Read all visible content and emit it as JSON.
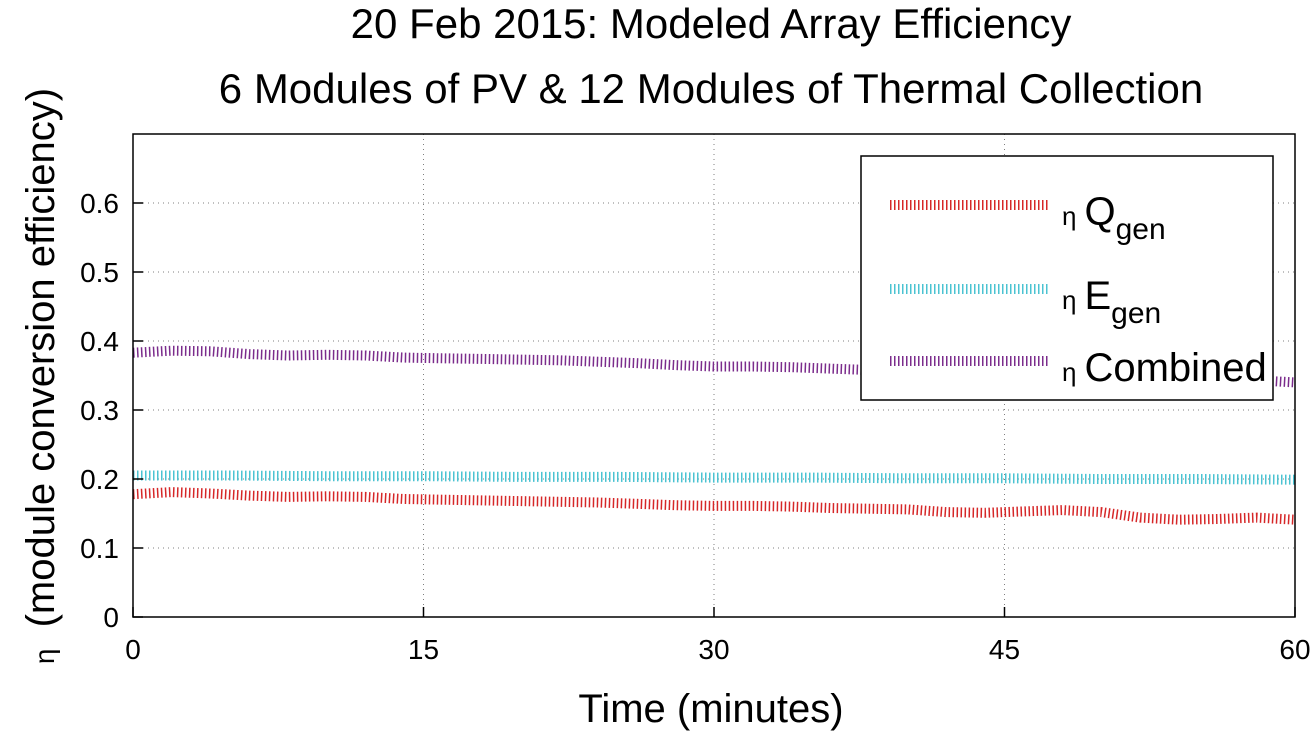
{
  "chart_data": {
    "type": "line",
    "title": [
      "20 Feb 2015: Modeled Array Efficiency",
      "6 Modules of PV & 12 Modules of Thermal Collection"
    ],
    "xlabel": "Time (minutes)",
    "ylabel": "(module conversion efficiency)",
    "ylabel_symbol": "η",
    "xlim": [
      0,
      60
    ],
    "ylim": [
      0,
      0.7
    ],
    "xticks": [
      0,
      15,
      30,
      45,
      60
    ],
    "xtick_labels": [
      "0",
      "15",
      "30",
      "45",
      "60"
    ],
    "yticks": [
      0,
      0.1,
      0.2,
      0.3,
      0.4,
      0.5,
      0.6
    ],
    "ytick_labels": [
      "0",
      "0.1",
      "0.2",
      "0.3",
      "0.4",
      "0.5",
      "0.6"
    ],
    "grid": true,
    "legend_position": "top-right",
    "series": [
      {
        "legend_eta": "η",
        "legend_main": "Q",
        "legend_sub": "gen",
        "color": "#d62728",
        "x": [
          0,
          2,
          4,
          6,
          8,
          10,
          12,
          14,
          16,
          18,
          20,
          22,
          24,
          26,
          28,
          30,
          32,
          34,
          36,
          38,
          40,
          42,
          44,
          46,
          48,
          50,
          52,
          54,
          56,
          58,
          60
        ],
        "y": [
          0.178,
          0.181,
          0.179,
          0.176,
          0.174,
          0.175,
          0.174,
          0.171,
          0.17,
          0.169,
          0.168,
          0.167,
          0.166,
          0.164,
          0.162,
          0.161,
          0.161,
          0.16,
          0.158,
          0.157,
          0.156,
          0.152,
          0.151,
          0.153,
          0.155,
          0.152,
          0.144,
          0.141,
          0.142,
          0.144,
          0.141
        ]
      },
      {
        "legend_eta": "η",
        "legend_main": "E",
        "legend_sub": "gen",
        "color": "#4bc3d2",
        "x": [
          0,
          5,
          10,
          15,
          20,
          25,
          30,
          35,
          40,
          45,
          50,
          55,
          60
        ],
        "y": [
          0.205,
          0.205,
          0.204,
          0.204,
          0.203,
          0.203,
          0.202,
          0.202,
          0.201,
          0.201,
          0.2,
          0.2,
          0.199
        ]
      },
      {
        "legend_eta": "η",
        "legend_main": "Combined",
        "legend_sub": "",
        "color": "#7b2c8c",
        "x": [
          0,
          2,
          4,
          6,
          8,
          10,
          12,
          14,
          16,
          18,
          20,
          22,
          24,
          26,
          28,
          30,
          32,
          34,
          36,
          38,
          40,
          42,
          44,
          46,
          48,
          50,
          52,
          54,
          56,
          58,
          60
        ],
        "y": [
          0.383,
          0.386,
          0.385,
          0.381,
          0.379,
          0.38,
          0.379,
          0.376,
          0.375,
          0.374,
          0.373,
          0.372,
          0.37,
          0.368,
          0.365,
          0.363,
          0.363,
          0.362,
          0.36,
          0.358,
          0.357,
          0.353,
          0.352,
          0.354,
          0.356,
          0.352,
          0.344,
          0.341,
          0.342,
          0.343,
          0.34
        ]
      }
    ]
  }
}
